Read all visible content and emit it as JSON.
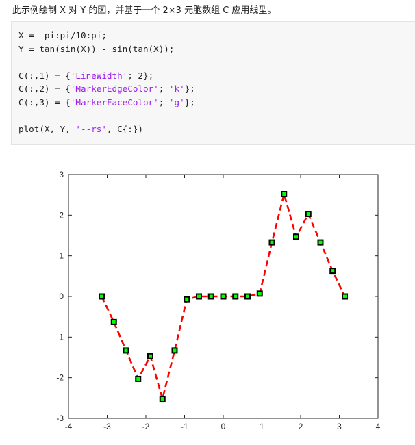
{
  "intro": "此示例绘制 X 对 Y 的图，并基于一个 2×3 元胞数组 C 应用线型。",
  "code": {
    "line1": "X = -pi:pi/10:pi;",
    "line2": "Y = tan(sin(X)) - sin(tan(X));",
    "line3_pre": "C(:,1) = {",
    "line3_s1": "'LineWidth'",
    "line3_post": "; 2};",
    "line4_pre": "C(:,2) = {",
    "line4_s1": "'MarkerEdgeColor'",
    "line4_mid": "; ",
    "line4_s2": "'k'",
    "line4_post": "};",
    "line5_pre": "C(:,3) = {",
    "line5_s1": "'MarkerFaceColor'",
    "line5_mid": "; ",
    "line5_s2": "'g'",
    "line5_post": "};",
    "line6_pre": "plot(X, Y, ",
    "line6_s1": "'--rs'",
    "line6_post": ", C{:})"
  },
  "chart_data": {
    "type": "line",
    "title": "",
    "xlabel": "",
    "ylabel": "",
    "xlim": [
      -4,
      4
    ],
    "ylim": [
      -3,
      3
    ],
    "xticks": [
      -4,
      -3,
      -2,
      -1,
      0,
      1,
      2,
      3,
      4
    ],
    "yticks": [
      -3,
      -2,
      -1,
      0,
      1,
      2,
      3
    ],
    "grid": false,
    "series": [
      {
        "line_color": "#ff0000",
        "line_style": "dashed",
        "marker": "square",
        "marker_edge_color": "#000000",
        "marker_face_color": "#00ff00",
        "x": [
          -3.1416,
          -2.8274,
          -2.5133,
          -2.1991,
          -1.885,
          -1.5708,
          -1.2566,
          -0.9425,
          -0.6283,
          -0.3142,
          0,
          0.3142,
          0.6283,
          0.9425,
          1.2566,
          1.5708,
          1.885,
          2.1991,
          2.5133,
          2.8274,
          3.1416
        ],
        "y": [
          0,
          -0.63,
          -1.33,
          -2.03,
          -1.47,
          -2.52,
          -1.33,
          -0.07,
          0,
          0,
          0,
          0,
          0,
          0.07,
          1.33,
          2.52,
          1.47,
          2.03,
          1.33,
          0.63,
          0
        ]
      }
    ]
  }
}
